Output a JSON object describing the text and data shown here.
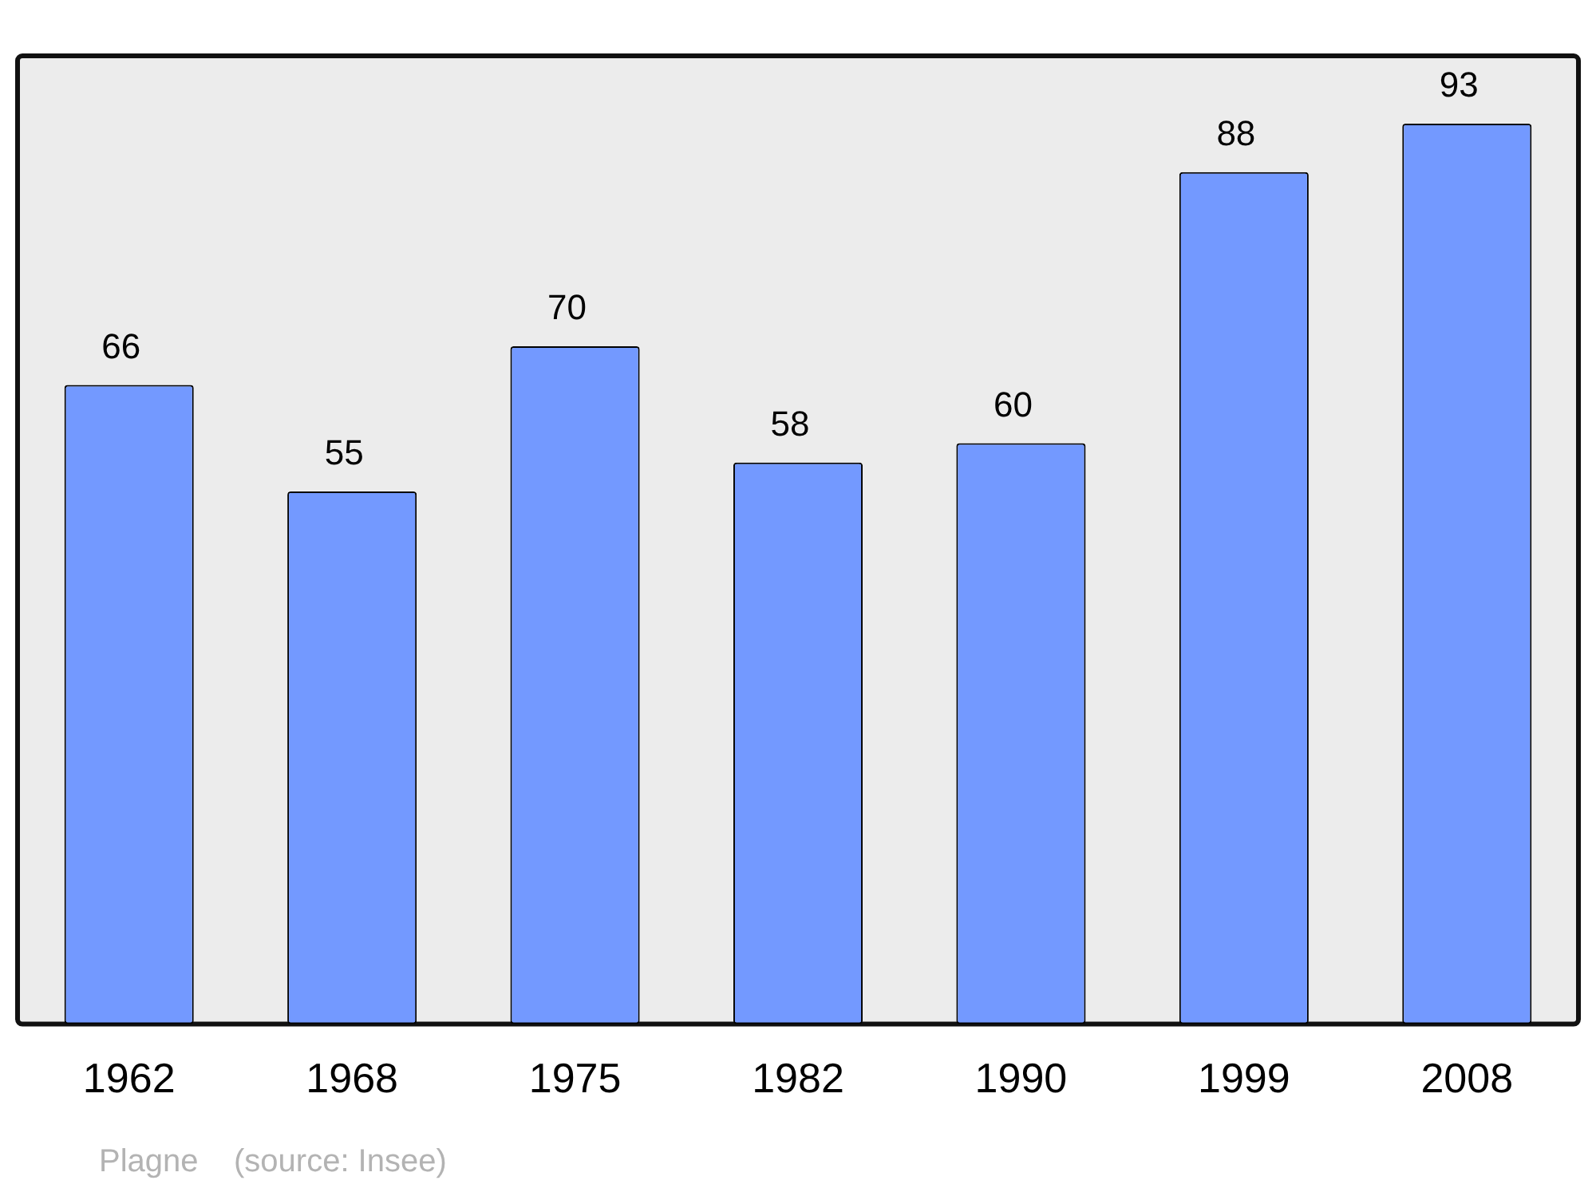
{
  "chart_data": {
    "type": "bar",
    "categories": [
      "1962",
      "1968",
      "1975",
      "1982",
      "1990",
      "1999",
      "2008"
    ],
    "values": [
      66,
      55,
      70,
      58,
      60,
      88,
      93
    ],
    "color": "#7399ff",
    "data_labels": true,
    "grid": false,
    "legend": false,
    "tick_labels": "x",
    "annotations": [
      "Plagne    (source: Insee)"
    ]
  }
}
